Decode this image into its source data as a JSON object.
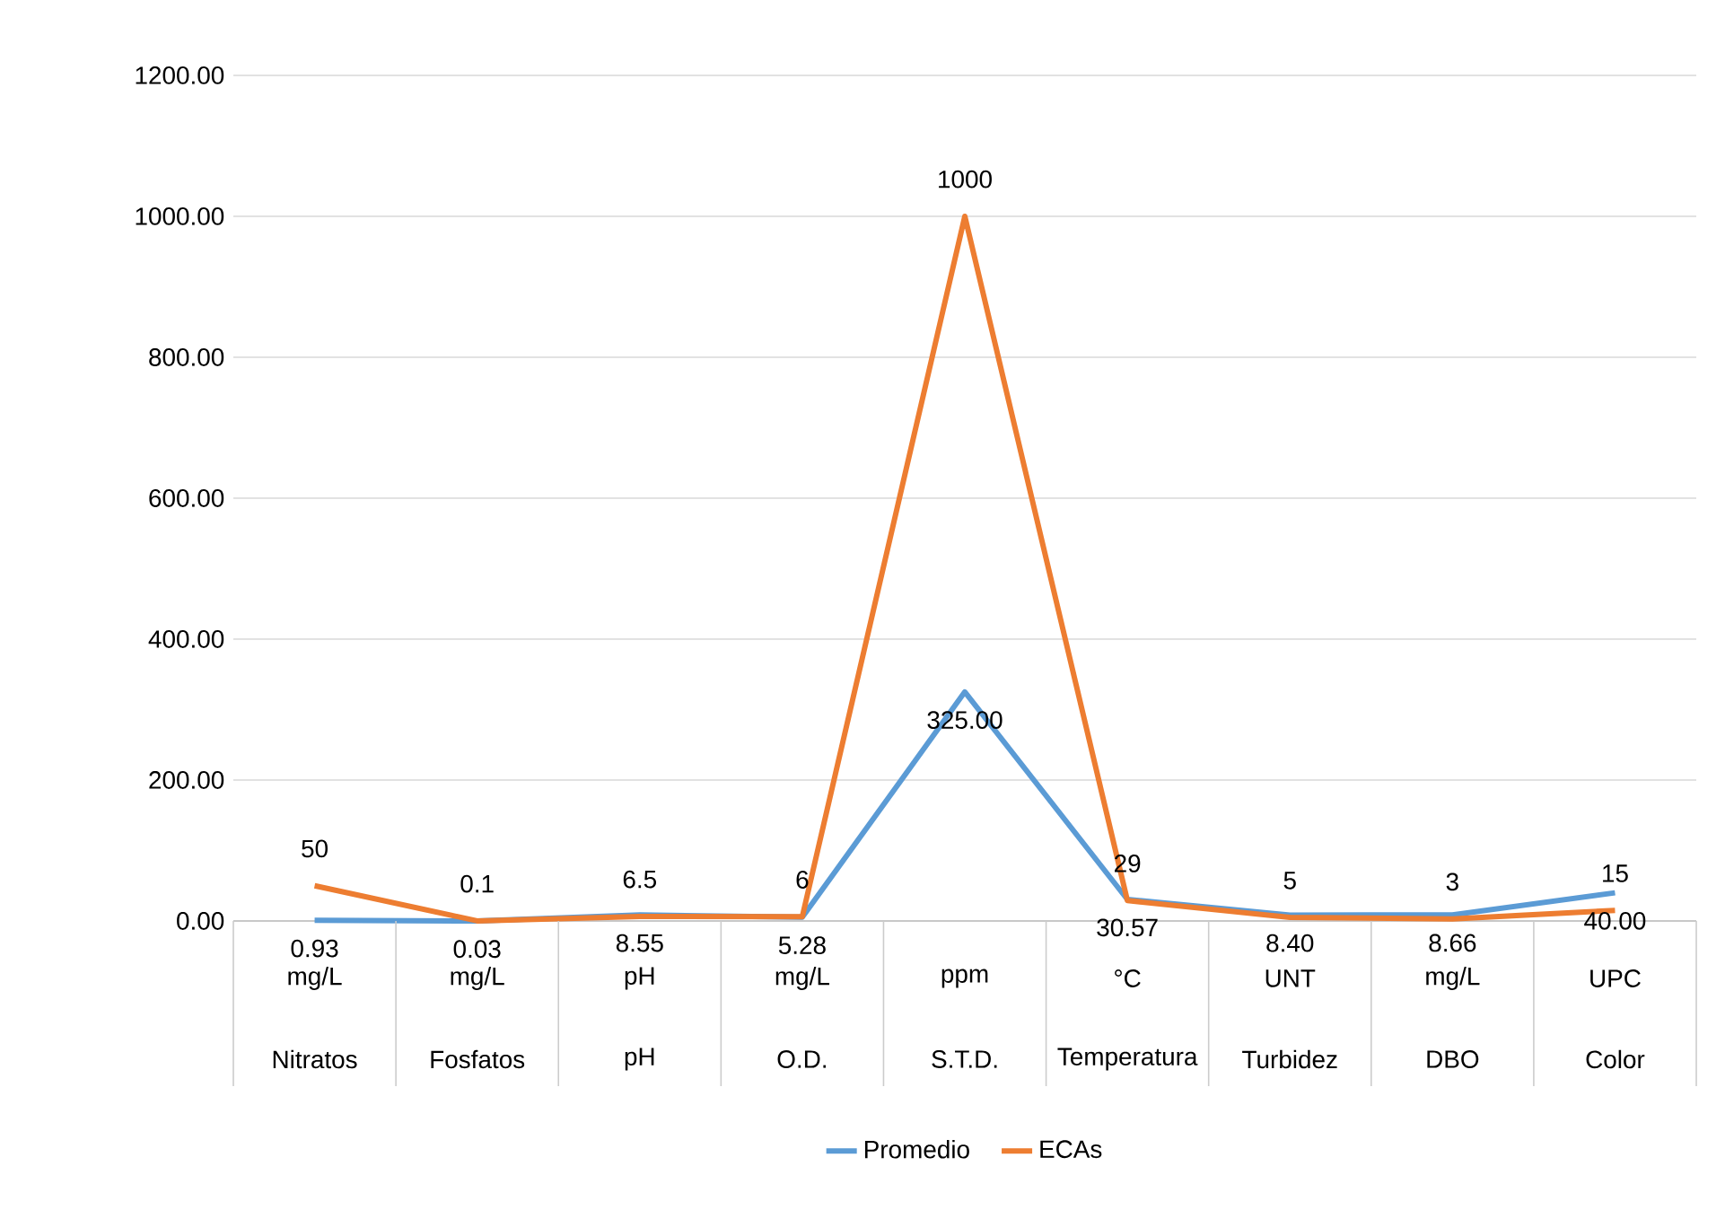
{
  "chart_data": {
    "type": "line",
    "categories": [
      "Nitratos",
      "Fosfatos",
      "pH",
      "O.D.",
      "S.T.D.",
      "Temperatura",
      "Turbidez",
      "DBO",
      "Color"
    ],
    "annotations": [
      "mg/L",
      "mg/L",
      "pH",
      "mg/L",
      "ppm",
      "°C",
      "UNT",
      "mg/L",
      "UPC"
    ],
    "ylim": [
      0,
      1200
    ],
    "yticks": [
      {
        "value": 0,
        "label": "0.00"
      },
      {
        "value": 200,
        "label": "200.00"
      },
      {
        "value": 400,
        "label": "400.00"
      },
      {
        "value": 600,
        "label": "600.00"
      },
      {
        "value": 800,
        "label": "800.00"
      },
      {
        "value": 1000,
        "label": "1000.00"
      },
      {
        "value": 1200,
        "label": "1200.00"
      }
    ],
    "grid": "y",
    "legend": "bottom",
    "line_style": "solid",
    "series": [
      {
        "name": "Promedio",
        "color": "#5b9bd5",
        "values": [
          0.93,
          0.03,
          8.55,
          5.28,
          325.0,
          30.57,
          8.4,
          8.66,
          40.0
        ],
        "value_labels": [
          "0.93",
          "0.03",
          "8.55",
          "5.28",
          "325.00",
          "30.57",
          "8.40",
          "8.66",
          "40.00"
        ]
      },
      {
        "name": "ECAs",
        "color": "#ed7d31",
        "values": [
          50,
          0.1,
          6.5,
          6,
          1000,
          29,
          5,
          3,
          15
        ],
        "value_labels": [
          "50",
          "0.1",
          "6.5",
          "6",
          "1000",
          "29",
          "5",
          "3",
          "15"
        ]
      }
    ]
  }
}
